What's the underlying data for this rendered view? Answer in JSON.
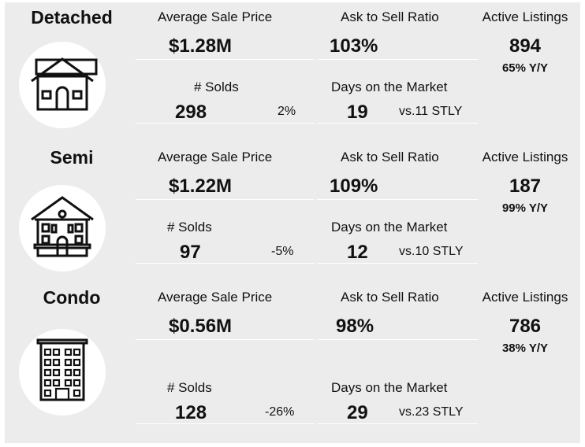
{
  "labels": {
    "avg_price": "Average Sale Price",
    "ask_ratio": "Ask to Sell Ratio",
    "active": "Active Listings",
    "solds": "# Solds",
    "dom": "Days on the Market"
  },
  "sections": [
    {
      "name": "Detached",
      "icon": "house-icon",
      "avg_price": "$1.28M",
      "ask_ratio": "103%",
      "active": "894",
      "active_yoy": "65% Y/Y",
      "solds": "298",
      "solds_change": "2%",
      "dom": "19",
      "dom_compare": "vs.11 STLY"
    },
    {
      "name": "Semi",
      "icon": "semi-house-icon",
      "avg_price": "$1.22M",
      "ask_ratio": "109%",
      "active": "187",
      "active_yoy": "99% Y/Y",
      "solds": "97",
      "solds_change": "-5%",
      "dom": "12",
      "dom_compare": "vs.10 STLY"
    },
    {
      "name": "Condo",
      "icon": "condo-building-icon",
      "avg_price": "$0.56M",
      "ask_ratio": "98%",
      "active": "786",
      "active_yoy": "38% Y/Y",
      "solds": "128",
      "solds_change": "-26%",
      "dom": "29",
      "dom_compare": "vs.23 STLY"
    }
  ]
}
